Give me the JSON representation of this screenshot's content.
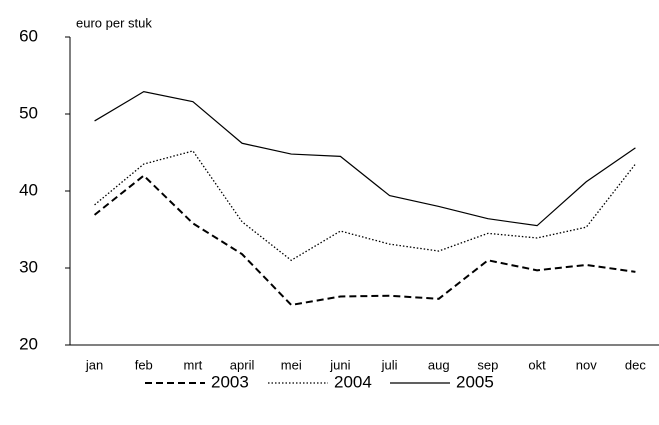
{
  "chart_data": {
    "type": "line",
    "y_label": "euro per stuk",
    "categories": [
      "jan",
      "feb",
      "mrt",
      "april",
      "mei",
      "juni",
      "juli",
      "aug",
      "sep",
      "okt",
      "nov",
      "dec"
    ],
    "series": [
      {
        "name": "2003",
        "color": "#000000",
        "dash": "7,4",
        "width": 2,
        "values": [
          36.9,
          42,
          35.8,
          31.8,
          25.2,
          26.3,
          26.4,
          26,
          31,
          29.7,
          30.4,
          29.5
        ]
      },
      {
        "name": "2004",
        "color": "#000000",
        "dash": "1.5,2",
        "width": 1.3,
        "values": [
          38.2,
          43.5,
          45.2,
          36,
          31,
          34.8,
          33.1,
          32.2,
          34.5,
          33.9,
          35.3,
          43.5
        ]
      },
      {
        "name": "2005",
        "color": "#000000",
        "dash": "none",
        "width": 1.2,
        "values": [
          49.1,
          52.9,
          51.6,
          46.2,
          44.8,
          44.5,
          39.4,
          38,
          36.4,
          35.5,
          41.2,
          45.6
        ]
      }
    ],
    "ylim": [
      20,
      60
    ],
    "yticks": [
      20,
      30,
      40,
      50,
      60
    ],
    "legend": "bottom"
  }
}
